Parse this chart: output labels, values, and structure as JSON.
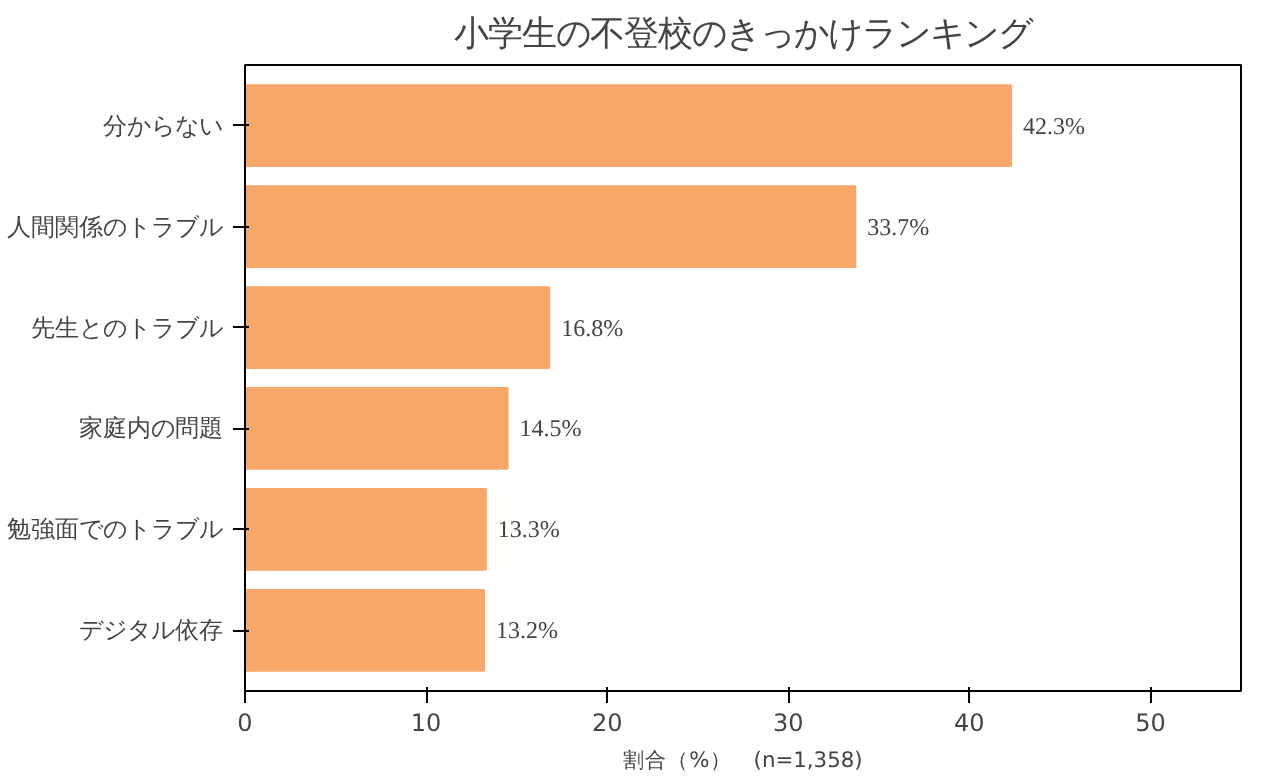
{
  "chart_data": {
    "type": "bar",
    "orientation": "horizontal",
    "title": "小学生の不登校のきっかけランキング",
    "xlabel": "割合（%）　(n=1,358)",
    "categories": [
      "分からない",
      "人間関係のトラブル",
      "先生とのトラブル",
      "家庭内の問題",
      "勉強面でのトラブル",
      "デジタル依存"
    ],
    "values": [
      42.3,
      33.7,
      16.8,
      14.5,
      13.3,
      13.2
    ],
    "value_labels": [
      "42.3%",
      "33.7%",
      "16.8%",
      "14.5%",
      "13.3%",
      "13.2%"
    ],
    "color": "#f8a76b",
    "xlim": [
      0,
      55
    ],
    "xticks": [
      0,
      10,
      20,
      30,
      40,
      50
    ],
    "grid": false
  }
}
